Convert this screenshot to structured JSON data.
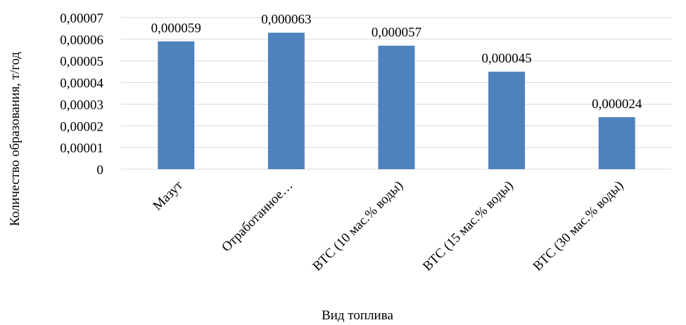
{
  "chart_data": {
    "type": "bar",
    "categories": [
      "Мазут",
      "Отработанное…",
      "ВТС (10 мас.% воды)",
      "ВТС (15 мас.% воды)",
      "ВТС (30 мас.% воды)"
    ],
    "values": [
      5.9e-05,
      6.3e-05,
      5.7e-05,
      4.5e-05,
      2.4e-05
    ],
    "value_labels": [
      "0,000059",
      "0,000063",
      "0,000057",
      "0,000045",
      "0,000024"
    ],
    "xlabel": "Вид топлива",
    "ylabel": "Количество образования, т/год",
    "ylim": [
      0,
      7e-05
    ],
    "y_ticks": [
      0,
      1e-05,
      2e-05,
      3e-05,
      4e-05,
      5e-05,
      6e-05,
      7e-05
    ],
    "y_tick_labels": [
      "0",
      "0,00001",
      "0,00002",
      "0,00003",
      "0,00004",
      "0,00005",
      "0,00006",
      "0,00007"
    ],
    "grid": true,
    "legend": "none",
    "bar_color": "#4f81bd"
  }
}
